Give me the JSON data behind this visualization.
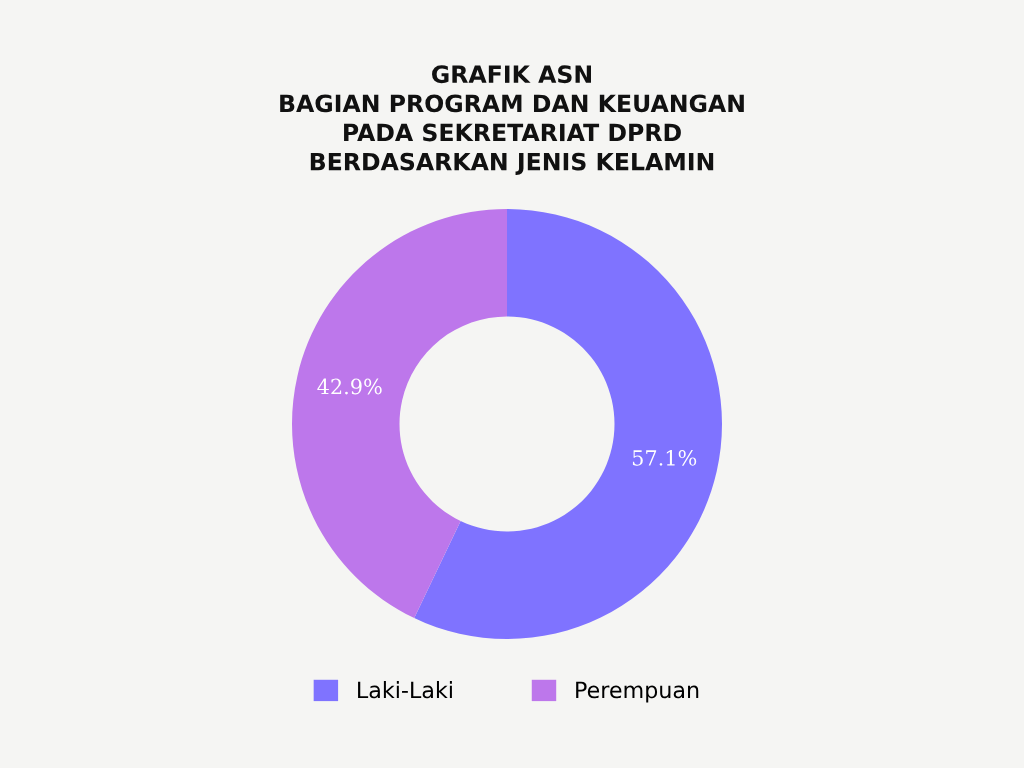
{
  "chart_data": {
    "type": "donut",
    "title": "GRAFIK ASN\nBAGIAN PROGRAM DAN KEUANGAN\nPADA SEKRETARIAT DPRD\nBERDASARKAN JENIS KELAMIN",
    "categories": [
      "Laki-Laki",
      "Perempuan"
    ],
    "values": [
      57.1,
      42.9
    ],
    "colors": [
      "#7f73ff",
      "#bd77eb"
    ],
    "value_labels": [
      "57.1%",
      "42.9%"
    ],
    "legend": "bottom"
  }
}
